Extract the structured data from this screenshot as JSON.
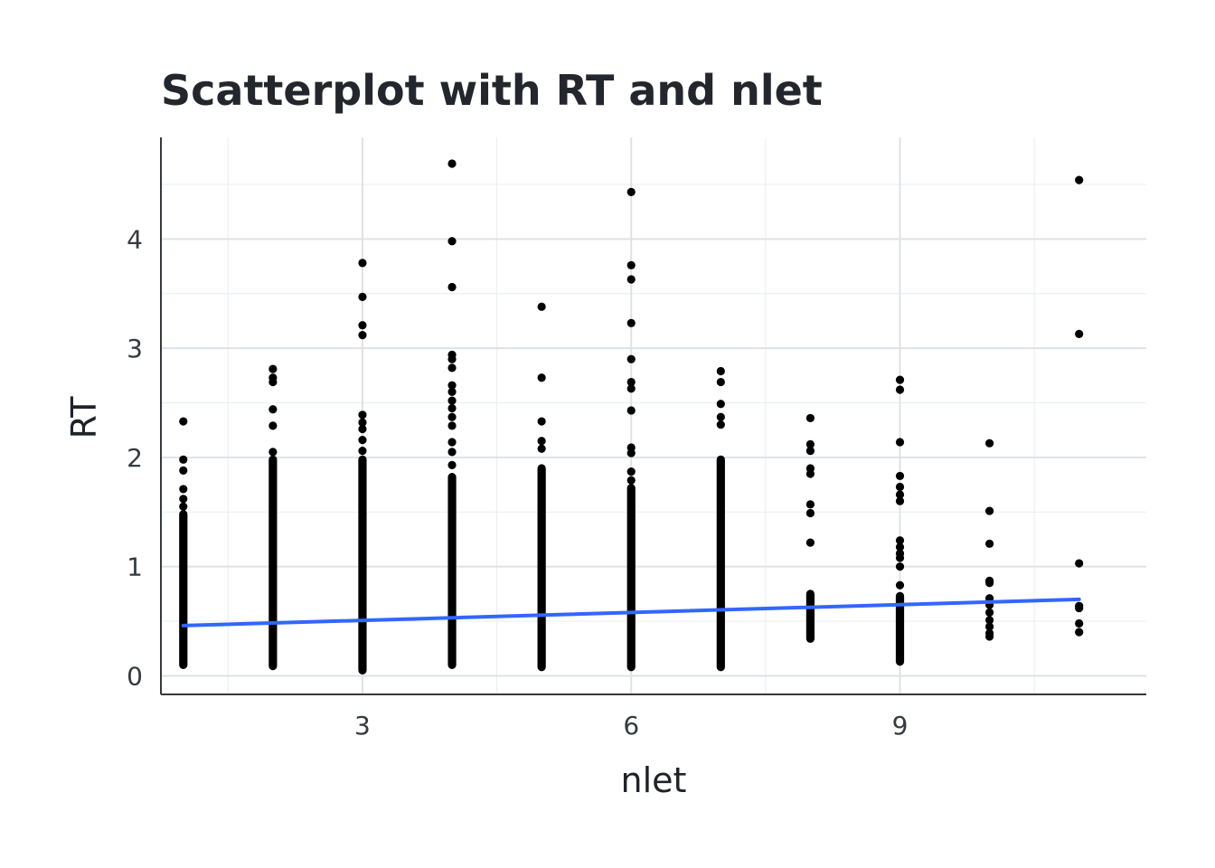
{
  "chart_data": {
    "type": "scatter",
    "title": "Scatterplot with RT and nlet",
    "xlabel": "nlet",
    "ylabel": "RT",
    "xlim": [
      0.75,
      11.75
    ],
    "ylim": [
      -0.17,
      4.93
    ],
    "x_ticks": [
      3,
      6,
      9
    ],
    "x_tick_labels": [
      "3",
      "6",
      "9"
    ],
    "x_minor_ticks": [
      1.5,
      4.5,
      7.5,
      10.5
    ],
    "y_ticks": [
      0,
      1,
      2,
      3,
      4
    ],
    "y_tick_labels": [
      "0",
      "1",
      "2",
      "3",
      "4"
    ],
    "y_minor_ticks": [
      0.5,
      1.5,
      2.5,
      3.5,
      4.5
    ],
    "grid": true,
    "legend": "none",
    "colors": {
      "points": "#000000",
      "trend": "#3366ff",
      "grid_major": "#dee2e6",
      "grid_minor": "#eceff2",
      "axis": "#343a40"
    },
    "columns": [
      {
        "x": 1,
        "range": [
          0.1,
          1.48
        ],
        "outliers": [
          1.55,
          1.62,
          1.71,
          1.88,
          1.98,
          2.33
        ]
      },
      {
        "x": 2,
        "range": [
          0.09,
          1.98
        ],
        "outliers": [
          2.05,
          2.29,
          2.44,
          2.69,
          2.73,
          2.81
        ]
      },
      {
        "x": 3,
        "range": [
          0.05,
          1.98
        ],
        "outliers": [
          2.06,
          2.16,
          2.26,
          2.32,
          2.39,
          3.12,
          3.21,
          3.47,
          3.78
        ]
      },
      {
        "x": 4,
        "range": [
          0.1,
          1.82
        ],
        "outliers": [
          1.93,
          2.05,
          2.14,
          2.29,
          2.37,
          2.45,
          2.52,
          2.6,
          2.66,
          2.82,
          2.9,
          2.94,
          3.56,
          3.98,
          4.69
        ]
      },
      {
        "x": 5,
        "range": [
          0.08,
          1.9
        ],
        "outliers": [
          2.08,
          2.15,
          2.33,
          2.73,
          3.38
        ]
      },
      {
        "x": 6,
        "range": [
          0.08,
          1.72
        ],
        "outliers": [
          1.79,
          1.87,
          2.04,
          2.09,
          2.43,
          2.63,
          2.69,
          2.9,
          3.23,
          3.63,
          3.76,
          4.43
        ]
      },
      {
        "x": 7,
        "range": [
          0.08,
          1.98
        ],
        "outliers": [
          2.3,
          2.37,
          2.49,
          2.69,
          2.79
        ]
      },
      {
        "x": 8,
        "range": [
          0.34,
          0.75
        ],
        "outliers": [
          1.22,
          1.49,
          1.57,
          1.85,
          1.9,
          2.06,
          2.12,
          2.36
        ]
      },
      {
        "x": 9,
        "range": [
          0.13,
          0.73
        ],
        "outliers": [
          0.83,
          1.0,
          1.08,
          1.12,
          1.18,
          1.24,
          1.6,
          1.66,
          1.73,
          1.83,
          2.14,
          2.62,
          2.71
        ]
      },
      {
        "x": 10,
        "points": [
          0.36,
          0.39,
          0.45,
          0.51,
          0.58,
          0.65,
          0.71,
          0.85,
          0.87,
          1.21,
          1.51,
          2.13
        ]
      },
      {
        "x": 11,
        "points": [
          0.4,
          0.48,
          0.62,
          0.64,
          1.03,
          3.13,
          4.54
        ]
      }
    ],
    "trend_line": {
      "x": [
        1,
        11
      ],
      "y": [
        0.46,
        0.7
      ]
    }
  }
}
